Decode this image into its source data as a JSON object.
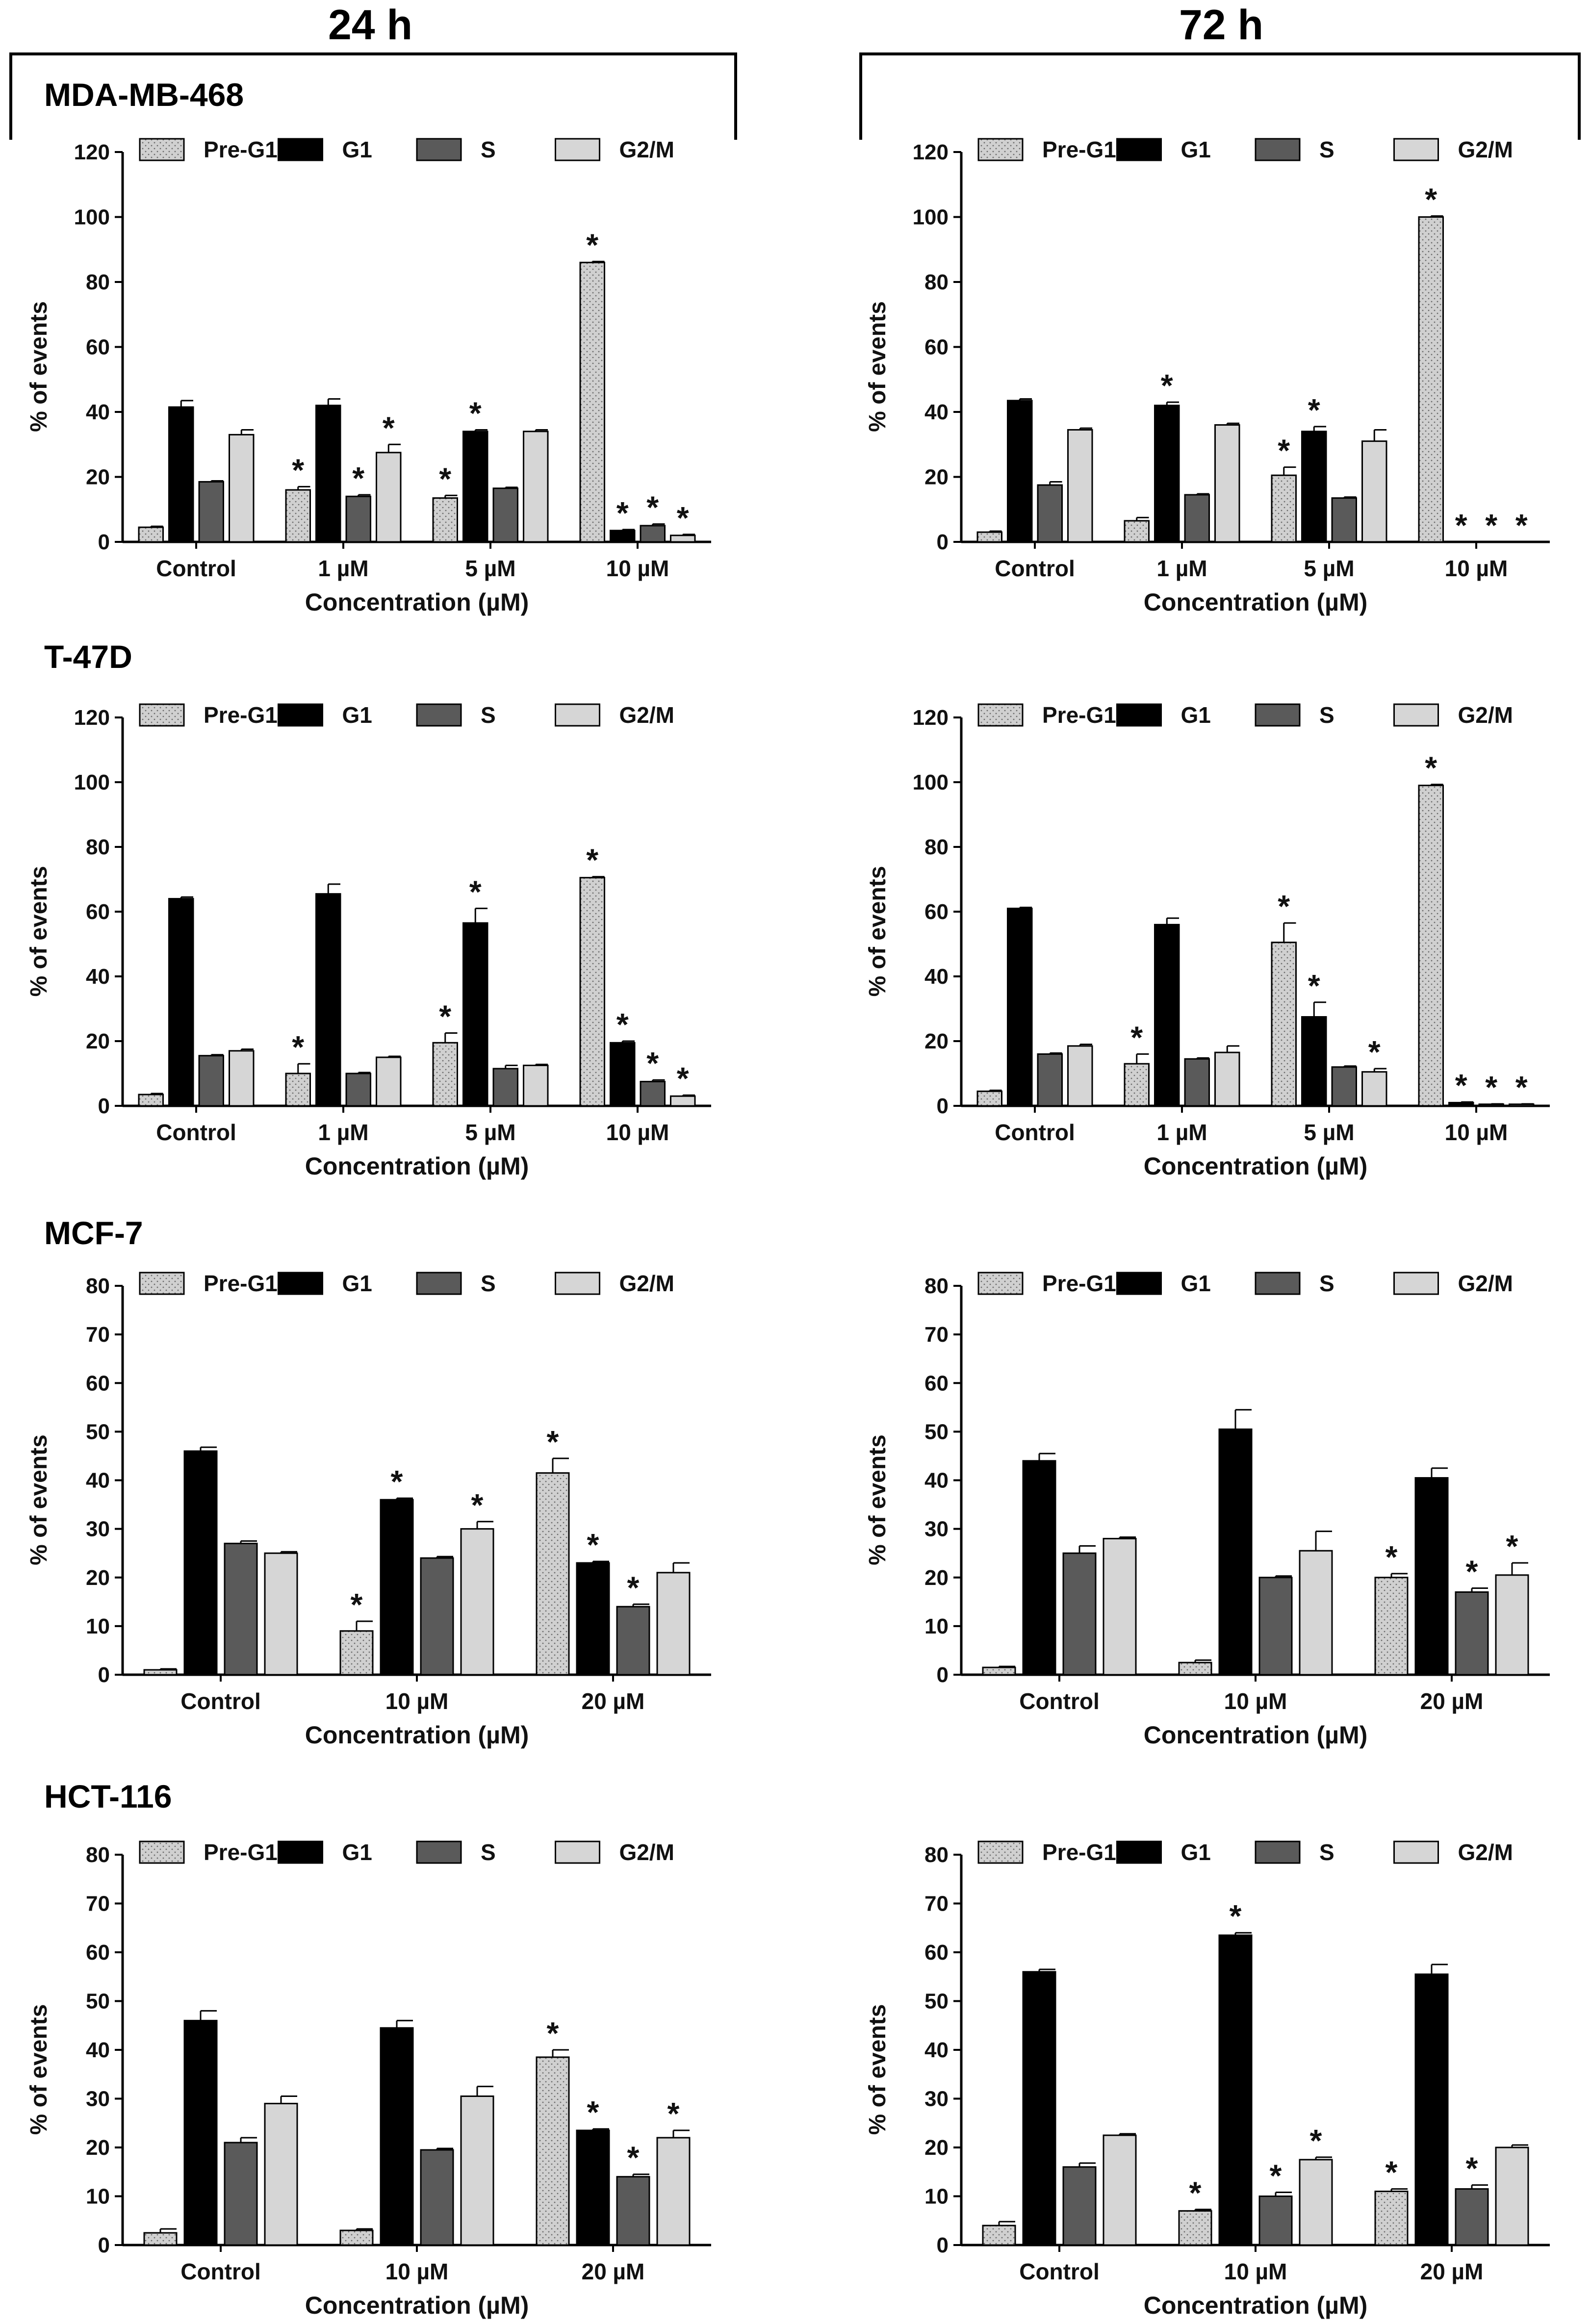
{
  "headers": {
    "left": "24 h",
    "right": "72 h"
  },
  "cell_lines": [
    "MDA-MB-468",
    "T-47D",
    "MCF-7",
    "HCT-116"
  ],
  "legend": [
    "Pre-G1",
    "G1",
    "S",
    "G2/M"
  ],
  "ylabel": "% of events",
  "xlabel": "Concentration (µM)",
  "significance_marker": "*",
  "colors": {
    "pre_g1": "#d0d0d0",
    "g1": "#000000",
    "s": "#5a5a5a",
    "g2m": "#d6d6d6",
    "axis": "#000000"
  },
  "chart_data": [
    {
      "id": "mda-24",
      "type": "bar",
      "cell_line": "MDA-MB-468",
      "time": "24 h",
      "categories": [
        "Control",
        "1 µM",
        "5 µM",
        "10 µM"
      ],
      "ylim": [
        0,
        120
      ],
      "yticks": [
        0,
        20,
        40,
        60,
        80,
        100,
        120
      ],
      "xlabel": "Concentration (µM)",
      "ylabel": "% of events",
      "series": [
        {
          "name": "Pre-G1",
          "values": [
            4.5,
            16,
            13.5,
            86
          ],
          "errors": [
            0.3,
            1,
            0.8,
            0.3
          ],
          "sig": [
            false,
            true,
            true,
            true
          ]
        },
        {
          "name": "G1",
          "values": [
            41.5,
            42,
            34,
            3.5
          ],
          "errors": [
            2,
            2,
            0.5,
            0.3
          ],
          "sig": [
            false,
            false,
            true,
            true
          ]
        },
        {
          "name": "S",
          "values": [
            18.5,
            14,
            16.5,
            5
          ],
          "errors": [
            0.3,
            0.5,
            0.3,
            0.5
          ],
          "sig": [
            false,
            true,
            false,
            true
          ]
        },
        {
          "name": "G2/M",
          "values": [
            33,
            27.5,
            34,
            2
          ],
          "errors": [
            1.5,
            2.5,
            0.5,
            0.3
          ],
          "sig": [
            false,
            true,
            false,
            true
          ]
        }
      ]
    },
    {
      "id": "mda-72",
      "type": "bar",
      "cell_line": "MDA-MB-468",
      "time": "72 h",
      "categories": [
        "Control",
        "1 µM",
        "5 µM",
        "10 µM"
      ],
      "ylim": [
        0,
        120
      ],
      "yticks": [
        0,
        20,
        40,
        60,
        80,
        100,
        120
      ],
      "xlabel": "Concentration (µM)",
      "ylabel": "% of events",
      "series": [
        {
          "name": "Pre-G1",
          "values": [
            3,
            6.5,
            20.5,
            100
          ],
          "errors": [
            0.3,
            1,
            2.5,
            0.3
          ],
          "sig": [
            false,
            false,
            true,
            true
          ]
        },
        {
          "name": "G1",
          "values": [
            43.5,
            42,
            34,
            0
          ],
          "errors": [
            0.5,
            1,
            1.5,
            0
          ],
          "sig": [
            false,
            true,
            true,
            true
          ]
        },
        {
          "name": "S",
          "values": [
            17.5,
            14.5,
            13.5,
            0
          ],
          "errors": [
            1,
            0.3,
            0.3,
            0
          ],
          "sig": [
            false,
            false,
            false,
            true
          ]
        },
        {
          "name": "G2/M",
          "values": [
            34.5,
            36,
            31,
            0
          ],
          "errors": [
            0.5,
            0.5,
            3.5,
            0
          ],
          "sig": [
            false,
            false,
            false,
            true
          ]
        }
      ]
    },
    {
      "id": "t47d-24",
      "type": "bar",
      "cell_line": "T-47D",
      "time": "24 h",
      "categories": [
        "Control",
        "1 µM",
        "5 µM",
        "10 µM"
      ],
      "ylim": [
        0,
        120
      ],
      "yticks": [
        0,
        20,
        40,
        60,
        80,
        100,
        120
      ],
      "xlabel": "Concentration (µM)",
      "ylabel": "% of events",
      "series": [
        {
          "name": "Pre-G1",
          "values": [
            3.5,
            10,
            19.5,
            70.5
          ],
          "errors": [
            0.3,
            3,
            3,
            0.3
          ],
          "sig": [
            false,
            true,
            true,
            true
          ]
        },
        {
          "name": "G1",
          "values": [
            64,
            65.5,
            56.5,
            19.5
          ],
          "errors": [
            0.5,
            3,
            4.5,
            0.5
          ],
          "sig": [
            false,
            false,
            true,
            true
          ]
        },
        {
          "name": "S",
          "values": [
            15.5,
            10,
            11.5,
            7.5
          ],
          "errors": [
            0.3,
            0.3,
            1,
            0.5
          ],
          "sig": [
            false,
            false,
            false,
            true
          ]
        },
        {
          "name": "G2/M",
          "values": [
            17,
            15,
            12.5,
            3
          ],
          "errors": [
            0.5,
            0.3,
            0.3,
            0.3
          ],
          "sig": [
            false,
            false,
            false,
            true
          ]
        }
      ]
    },
    {
      "id": "t47d-72",
      "type": "bar",
      "cell_line": "T-47D",
      "time": "72 h",
      "categories": [
        "Control",
        "1 µM",
        "5 µM",
        "10 µM"
      ],
      "ylim": [
        0,
        120
      ],
      "yticks": [
        0,
        20,
        40,
        60,
        80,
        100,
        120
      ],
      "xlabel": "Concentration (µM)",
      "ylabel": "% of events",
      "series": [
        {
          "name": "Pre-G1",
          "values": [
            4.5,
            13,
            50.5,
            99
          ],
          "errors": [
            0.3,
            3,
            6,
            0.3
          ],
          "sig": [
            false,
            true,
            true,
            true
          ]
        },
        {
          "name": "G1",
          "values": [
            61,
            56,
            27.5,
            1
          ],
          "errors": [
            0.3,
            2,
            4.5,
            0.2
          ],
          "sig": [
            false,
            false,
            true,
            true
          ]
        },
        {
          "name": "S",
          "values": [
            16,
            14.5,
            12,
            0.5
          ],
          "errors": [
            0.3,
            0.3,
            0.3,
            0.1
          ],
          "sig": [
            false,
            false,
            false,
            true
          ]
        },
        {
          "name": "G2/M",
          "values": [
            18.5,
            16.5,
            10.5,
            0.5
          ],
          "errors": [
            0.5,
            2,
            1,
            0.1
          ],
          "sig": [
            false,
            false,
            true,
            true
          ]
        }
      ]
    },
    {
      "id": "mcf7-24",
      "type": "bar",
      "cell_line": "MCF-7",
      "time": "24 h",
      "categories": [
        "Control",
        "10 µM",
        "20 µM"
      ],
      "ylim": [
        0,
        80
      ],
      "yticks": [
        0,
        10,
        20,
        30,
        40,
        50,
        60,
        70,
        80
      ],
      "xlabel": "Concentration (µM)",
      "ylabel": "% of events",
      "series": [
        {
          "name": "Pre-G1",
          "values": [
            1,
            9,
            41.5
          ],
          "errors": [
            0.2,
            2,
            3
          ],
          "sig": [
            false,
            true,
            true
          ]
        },
        {
          "name": "G1",
          "values": [
            46,
            36,
            23
          ],
          "errors": [
            0.8,
            0.3,
            0.3
          ],
          "sig": [
            false,
            true,
            true
          ]
        },
        {
          "name": "S",
          "values": [
            27,
            24,
            14
          ],
          "errors": [
            0.5,
            0.3,
            0.5
          ],
          "sig": [
            false,
            false,
            true
          ]
        },
        {
          "name": "G2/M",
          "values": [
            25,
            30,
            21
          ],
          "errors": [
            0.3,
            1.5,
            2
          ],
          "sig": [
            false,
            true,
            false
          ]
        }
      ]
    },
    {
      "id": "mcf7-72",
      "type": "bar",
      "cell_line": "MCF-7",
      "time": "72 h",
      "categories": [
        "Control",
        "10 µM",
        "20 µM"
      ],
      "ylim": [
        0,
        80
      ],
      "yticks": [
        0,
        10,
        20,
        30,
        40,
        50,
        60,
        70,
        80
      ],
      "xlabel": "Concentration (µM)",
      "ylabel": "% of events",
      "series": [
        {
          "name": "Pre-G1",
          "values": [
            1.5,
            2.5,
            20
          ],
          "errors": [
            0.2,
            0.5,
            0.8
          ],
          "sig": [
            false,
            false,
            true
          ]
        },
        {
          "name": "G1",
          "values": [
            44,
            50.5,
            40.5
          ],
          "errors": [
            1.5,
            4,
            2
          ],
          "sig": [
            false,
            false,
            false
          ]
        },
        {
          "name": "S",
          "values": [
            25,
            20,
            17
          ],
          "errors": [
            1.5,
            0.3,
            0.8
          ],
          "sig": [
            false,
            false,
            true
          ]
        },
        {
          "name": "G2/M",
          "values": [
            28,
            25.5,
            20.5
          ],
          "errors": [
            0.3,
            4,
            2.5
          ],
          "sig": [
            false,
            false,
            true
          ]
        }
      ]
    },
    {
      "id": "hct-24",
      "type": "bar",
      "cell_line": "HCT-116",
      "time": "24 h",
      "categories": [
        "Control",
        "10 µM",
        "20 µM"
      ],
      "ylim": [
        0,
        80
      ],
      "yticks": [
        0,
        10,
        20,
        30,
        40,
        50,
        60,
        70,
        80
      ],
      "xlabel": "Concentration (µM)",
      "ylabel": "% of events",
      "series": [
        {
          "name": "Pre-G1",
          "values": [
            2.5,
            3,
            38.5
          ],
          "errors": [
            0.8,
            0.3,
            1.5
          ],
          "sig": [
            false,
            false,
            true
          ]
        },
        {
          "name": "G1",
          "values": [
            46,
            44.5,
            23.5
          ],
          "errors": [
            2,
            1.5,
            0.3
          ],
          "sig": [
            false,
            false,
            true
          ]
        },
        {
          "name": "S",
          "values": [
            21,
            19.5,
            14
          ],
          "errors": [
            1,
            0.3,
            0.5
          ],
          "sig": [
            false,
            false,
            true
          ]
        },
        {
          "name": "G2/M",
          "values": [
            29,
            30.5,
            22
          ],
          "errors": [
            1.5,
            2,
            1.5
          ],
          "sig": [
            false,
            false,
            true
          ]
        }
      ]
    },
    {
      "id": "hct-72",
      "type": "bar",
      "cell_line": "HCT-116",
      "time": "72 h",
      "categories": [
        "Control",
        "10 µM",
        "20 µM"
      ],
      "ylim": [
        0,
        80
      ],
      "yticks": [
        0,
        10,
        20,
        30,
        40,
        50,
        60,
        70,
        80
      ],
      "xlabel": "Concentration (µM)",
      "ylabel": "% of events",
      "series": [
        {
          "name": "Pre-G1",
          "values": [
            4,
            7,
            11
          ],
          "errors": [
            0.8,
            0.3,
            0.5
          ],
          "sig": [
            false,
            true,
            true
          ]
        },
        {
          "name": "G1",
          "values": [
            56,
            63.5,
            55.5
          ],
          "errors": [
            0.5,
            0.5,
            2
          ],
          "sig": [
            false,
            true,
            false
          ]
        },
        {
          "name": "S",
          "values": [
            16,
            10,
            11.5
          ],
          "errors": [
            0.8,
            0.8,
            0.8
          ],
          "sig": [
            false,
            true,
            true
          ]
        },
        {
          "name": "G2/M",
          "values": [
            22.5,
            17.5,
            20
          ],
          "errors": [
            0.3,
            0.5,
            0.5
          ],
          "sig": [
            false,
            true,
            false
          ]
        }
      ]
    }
  ]
}
